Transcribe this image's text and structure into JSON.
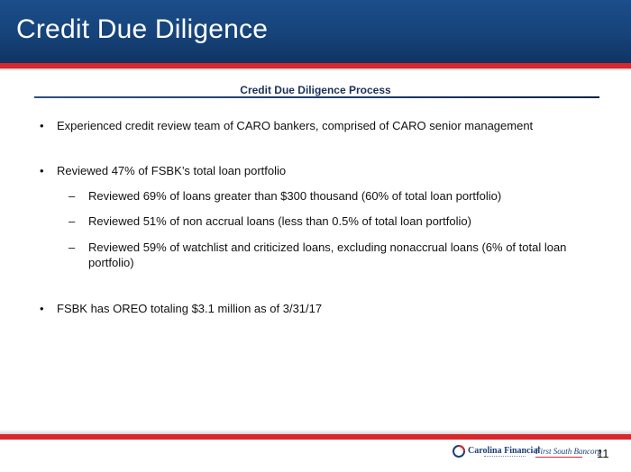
{
  "header": {
    "title": "Credit Due Diligence"
  },
  "section": {
    "title": "Credit Due Diligence Process"
  },
  "bullets": [
    {
      "marker": "•",
      "text": "Experienced credit review team of CARO bankers, comprised of CARO senior management"
    },
    {
      "marker": "•",
      "text": "Reviewed 47% of FSBK’s total loan portfolio",
      "subitems": [
        {
          "marker": "–",
          "text": "Reviewed 69% of loans greater than $300 thousand (60% of total loan portfolio)"
        },
        {
          "marker": "–",
          "text": "Reviewed 51% of non accrual loans (less than 0.5% of total loan portfolio)"
        },
        {
          "marker": "–",
          "text": "Reviewed 59% of watchlist and criticized loans, excluding nonaccrual loans (6% of total loan portfolio)"
        }
      ]
    },
    {
      "marker": "•",
      "text": "FSBK has OREO totaling $3.1 million as of 3/31/17"
    }
  ],
  "footer": {
    "logo_carolina_financial": "Carolina Financial",
    "logo_first_south": "First South Bancorp",
    "page_number": "11"
  },
  "colors": {
    "header_blue": "#164379",
    "accent_red": "#d9272e",
    "text_dark": "#111111",
    "section_title_navy": "#1a2f5a"
  },
  "icons": {
    "carolina_financial_logo": "carolina-financial-logo-icon",
    "first_south_logo": "first-south-bancorp-logo-icon"
  }
}
